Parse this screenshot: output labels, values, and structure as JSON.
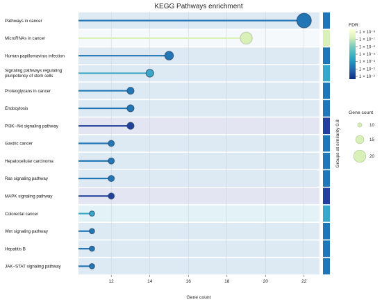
{
  "chart_data": {
    "type": "scatter",
    "title": "KEGG Pathways enrichment",
    "xlabel": "Gene count",
    "ylabel": "",
    "xlim": [
      10.3,
      22.8
    ],
    "xticks": [
      "12",
      "14",
      "16",
      "18",
      "20",
      "22"
    ],
    "xtick_values": [
      12,
      14,
      16,
      18,
      20,
      22
    ],
    "categories": [
      "Pathways in cancer",
      "MicroRNAs in cancer",
      "Human papillomavirus infection",
      "Signaling pathways regulating pluripotency of stem cells",
      "Proteoglycans in cancer",
      "Endocytosis",
      "PI3K−Akt signaling pathway",
      "Gastric cancer",
      "Hepatocellular carcinoma",
      "Ras signaling pathway",
      "MAPK signaling pathway",
      "Colorectal cancer",
      "Wnt signaling pathway",
      "Hepatitis B",
      "JAK−STAT signaling pathway"
    ],
    "category_lines": [
      [
        "Pathways in cancer"
      ],
      [
        "MicroRNAs in cancer"
      ],
      [
        "Human papillomavirus infection"
      ],
      [
        "Signaling pathways regulating",
        "pluripotency of stem cells"
      ],
      [
        "Proteoglycans in cancer"
      ],
      [
        "Endocytosis"
      ],
      [
        "PI3K−Akt signaling pathway"
      ],
      [
        "Gastric cancer"
      ],
      [
        "Hepatocellular carcinoma"
      ],
      [
        "Ras signaling pathway"
      ],
      [
        "MAPK signaling pathway"
      ],
      [
        "Colorectal cancer"
      ],
      [
        "Wnt signaling pathway"
      ],
      [
        "Hepatitis B"
      ],
      [
        "JAK−STAT signaling pathway"
      ]
    ],
    "values": [
      22,
      19,
      15,
      14,
      13,
      13,
      13,
      12,
      12,
      12,
      12,
      11,
      11,
      11,
      11
    ],
    "colors": [
      "#2276b4",
      "#d9f0b8",
      "#2276b4",
      "#3ba7c6",
      "#2276b4",
      "#2276b4",
      "#23409a",
      "#2276b4",
      "#2276b4",
      "#2276b4",
      "#23409a",
      "#3ba7c6",
      "#2276b4",
      "#2276b4",
      "#2276b4"
    ],
    "row_backgrounds": [
      "#ddeaf4",
      "#f6f9fb",
      "#ddeaf4",
      "#ddeaf4",
      "#ddeaf4",
      "#ddeaf4",
      "#e3e6f2",
      "#ddeaf4",
      "#ddeaf4",
      "#ddeaf4",
      "#e3e6f2",
      "#e2f2f6",
      "#ddeaf4",
      "#ddeaf4",
      "#ddeaf4"
    ],
    "group_strip_title": "Groups at similarity 0.8",
    "group_colors": [
      "#2276b4",
      "#d9f0b8",
      "#2276b4",
      "#3ba7c6",
      "#2276b4",
      "#2276b4",
      "#23409a",
      "#2276b4",
      "#2276b4",
      "#2276b4",
      "#23409a",
      "#3ba7c6",
      "#2276b4",
      "#2276b4",
      "#2276b4"
    ],
    "fdr_legend": {
      "title": "FDR",
      "labels": [
        "1 × 10⁻⁸",
        "1 × 10⁻⁷",
        "1 × 10⁻⁶",
        "1 × 10⁻⁵",
        "1 × 10⁻⁴",
        "1 × 10⁻³",
        "1 × 10⁻²"
      ],
      "gradient": [
        "#ffffd9",
        "#d9f0b8",
        "#7fcdbb",
        "#41b6c4",
        "#1d91c0",
        "#225ea8",
        "#0c2c84"
      ]
    },
    "size_legend": {
      "title": "Gene count",
      "labels": [
        "10",
        "15",
        "20"
      ],
      "values": [
        10,
        15,
        20
      ],
      "fill": "#d9f0b8",
      "stroke": "#b5cfa0"
    },
    "grid": true,
    "legend_position": "right"
  }
}
